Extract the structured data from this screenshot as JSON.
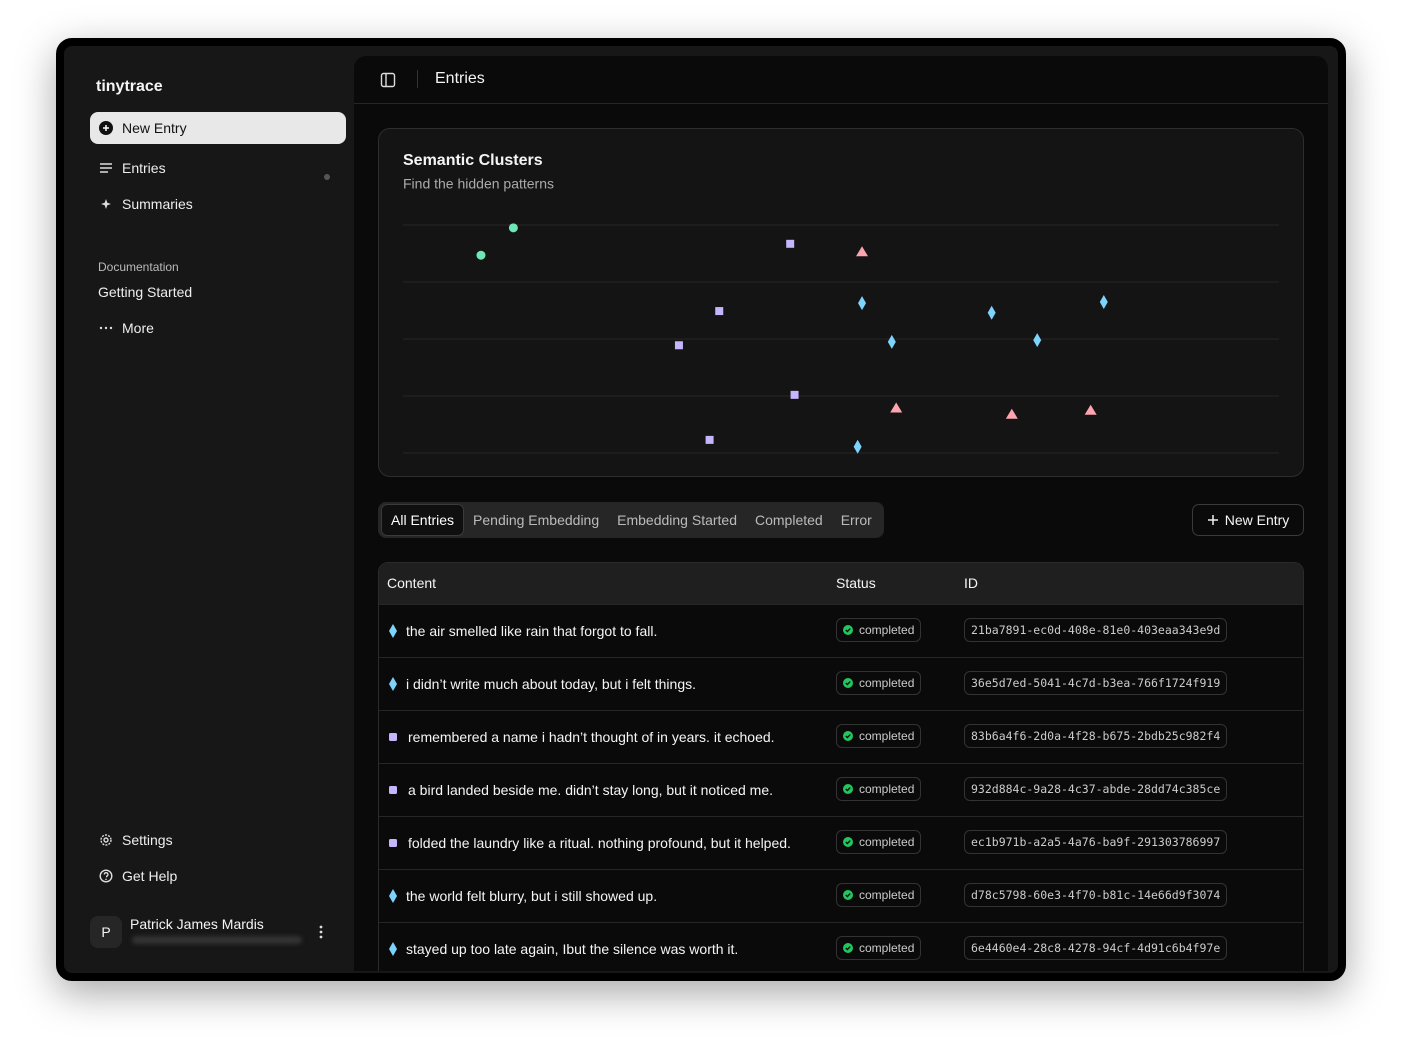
{
  "sidebar": {
    "brand": "tinytrace",
    "new_entry": "New Entry",
    "nav": [
      "Entries",
      "Summaries"
    ],
    "section": "Documentation",
    "doc_links": [
      "Getting Started",
      "More"
    ],
    "footer": [
      "Settings",
      "Get Help"
    ],
    "user": {
      "initial": "P",
      "name": "Patrick James Mardis"
    }
  },
  "header": {
    "title": "Entries"
  },
  "chart_data": {
    "type": "scatter",
    "title": "Semantic Clusters",
    "subtitle": "Find the hidden patterns",
    "xlim": [
      0,
      10
    ],
    "ylim": [
      0,
      4
    ],
    "yticks": [
      0,
      1,
      2,
      3,
      4
    ],
    "grid": true,
    "series": [
      {
        "color": "#6ee7b7",
        "marker": "circle",
        "x": [
          0.89,
          1.26
        ],
        "values": [
          3.47,
          3.95
        ]
      },
      {
        "color": "#c4b5fd",
        "marker": "square",
        "x": [
          4.42,
          3.61,
          3.15,
          4.47,
          3.5
        ],
        "values": [
          3.67,
          2.49,
          1.89,
          1.02,
          0.23
        ]
      },
      {
        "color": "#fda4af",
        "marker": "triangle",
        "x": [
          5.24,
          5.63,
          6.95,
          7.85
        ],
        "values": [
          3.53,
          0.79,
          0.68,
          0.75
        ]
      },
      {
        "color": "#7dd3fc",
        "marker": "diamond",
        "x": [
          5.24,
          5.58,
          6.72,
          7.24,
          8.0,
          5.19
        ],
        "values": [
          2.63,
          1.95,
          2.46,
          1.98,
          2.65,
          0.11
        ]
      }
    ]
  },
  "tabs": [
    "All Entries",
    "Pending Embedding",
    "Embedding Started",
    "Completed",
    "Error"
  ],
  "active_tab": 0,
  "new_entry_button": "New Entry",
  "table": {
    "columns": [
      "Content",
      "Status",
      "ID"
    ],
    "rows": [
      {
        "marker": "diamond",
        "color": "#7dd3fc",
        "content": "the air smelled like rain that forgot to fall.",
        "status": "completed",
        "id": "21ba7891-ec0d-408e-81e0-403eaa343e9d"
      },
      {
        "marker": "diamond",
        "color": "#7dd3fc",
        "content": "i didn’t write much about today, but i felt things.",
        "status": "completed",
        "id": "36e5d7ed-5041-4c7d-b3ea-766f1724f919"
      },
      {
        "marker": "square",
        "color": "#c4b5fd",
        "content": "remembered a name i hadn’t thought of in years. it echoed.",
        "status": "completed",
        "id": "83b6a4f6-2d0a-4f28-b675-2bdb25c982f4"
      },
      {
        "marker": "square",
        "color": "#c4b5fd",
        "content": "a bird landed beside me. didn’t stay long, but it noticed me.",
        "status": "completed",
        "id": "932d884c-9a28-4c37-abde-28dd74c385ce"
      },
      {
        "marker": "square",
        "color": "#c4b5fd",
        "content": "folded the laundry like a ritual. nothing profound, but it helped.",
        "status": "completed",
        "id": "ec1b971b-a2a5-4a76-ba9f-291303786997"
      },
      {
        "marker": "diamond",
        "color": "#7dd3fc",
        "content": "the world felt blurry, but i still showed up.",
        "status": "completed",
        "id": "d78c5798-60e3-4f70-b81c-14e66d9f3074"
      },
      {
        "marker": "diamond",
        "color": "#7dd3fc",
        "content": "stayed up too late again, Ibut the silence was worth it.",
        "status": "completed",
        "id": "6e4460e4-28c8-4278-94cf-4d91c6b4f97e"
      }
    ]
  }
}
